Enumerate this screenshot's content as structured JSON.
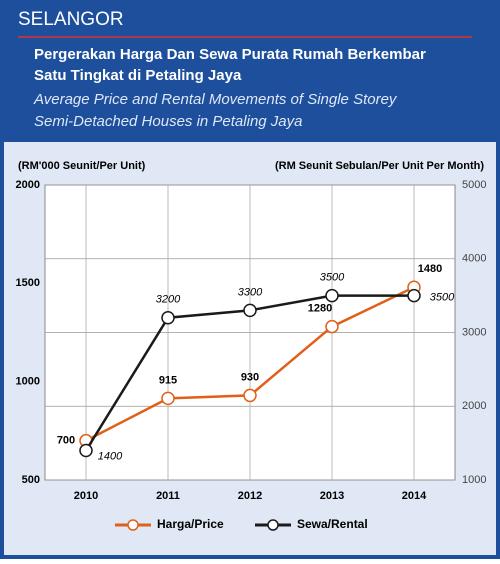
{
  "header": {
    "region": "SELANGOR",
    "title": [
      "Pergerakan Harga Dan Sewa Purata Rumah Berkembar",
      "Satu Tingkat di Petaling Jaya"
    ],
    "subtitle": [
      "Average Price and Rental Movements of Single Storey",
      "Semi-Detached Houses in Petaling Jaya"
    ]
  },
  "chart_data": {
    "type": "line",
    "y_label": "(RM'000 Seunit/Per Unit)",
    "y2_label": "(RM Seunit Sebulan/Per Unit Per Month)",
    "categories": [
      "2010",
      "2011",
      "2012",
      "2013",
      "2014"
    ],
    "series": [
      {
        "name": "Harga/Price",
        "color": "#e0601a",
        "values": [
          700,
          915,
          930,
          1280,
          1480
        ]
      },
      {
        "name": "Sewa/Rental",
        "color": "#1a1a1a",
        "axis": "y2",
        "values": [
          1400,
          3200,
          3300,
          3500,
          3500
        ]
      }
    ],
    "ylim": [
      500,
      2000
    ],
    "yticks": [
      500,
      1000,
      1500,
      2000
    ],
    "y2lim": [
      1000,
      5000
    ],
    "y2ticks": [
      1000,
      2000,
      3000,
      4000,
      5000
    ],
    "grid": true,
    "legend": "bottom"
  }
}
